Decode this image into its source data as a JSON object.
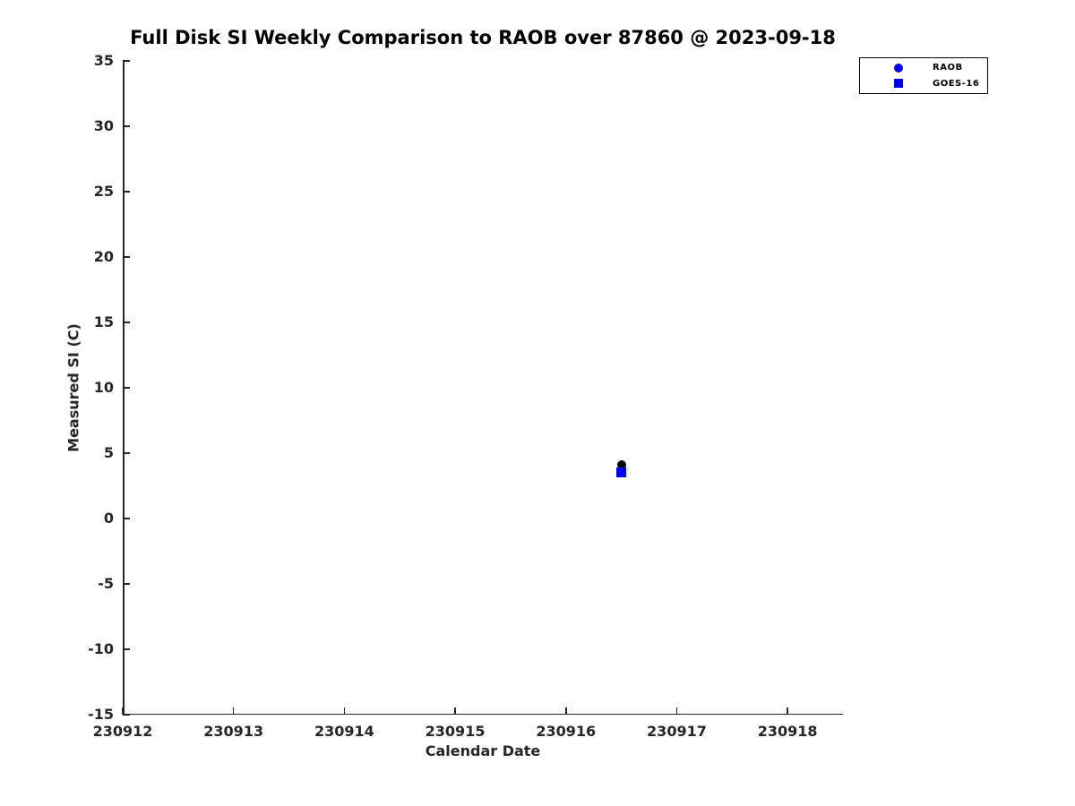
{
  "chart_data": {
    "type": "scatter",
    "title": "Full Disk SI Weekly Comparison to RAOB over 87860 @ 2023-09-18",
    "xlabel": "Calendar Date",
    "ylabel": "Measured SI (C)",
    "xlim": [
      230912,
      230918.5
    ],
    "ylim": [
      -15,
      35
    ],
    "x_ticks": [
      230912,
      230913,
      230914,
      230915,
      230916,
      230917,
      230918
    ],
    "y_ticks": [
      -15,
      -10,
      -5,
      0,
      5,
      10,
      15,
      20,
      25,
      30,
      35
    ],
    "grid": false,
    "legend_position": "top-right",
    "colors": {
      "axis": "#262626",
      "title_text": "#000000",
      "series_blue": "#0000ee",
      "raob_plot_marker": "#000000"
    },
    "series": [
      {
        "name": "RAOB",
        "marker": "circle",
        "marker_size": 10,
        "plot_color": "#000000",
        "legend_color": "#0000ee",
        "points": [
          {
            "x": 230916.5,
            "y": 4.1
          }
        ]
      },
      {
        "name": "GOES-16",
        "marker": "square",
        "marker_size": 11,
        "plot_color": "#0000ee",
        "legend_color": "#0000ee",
        "points": [
          {
            "x": 230916.5,
            "y": 3.5
          }
        ]
      }
    ]
  }
}
